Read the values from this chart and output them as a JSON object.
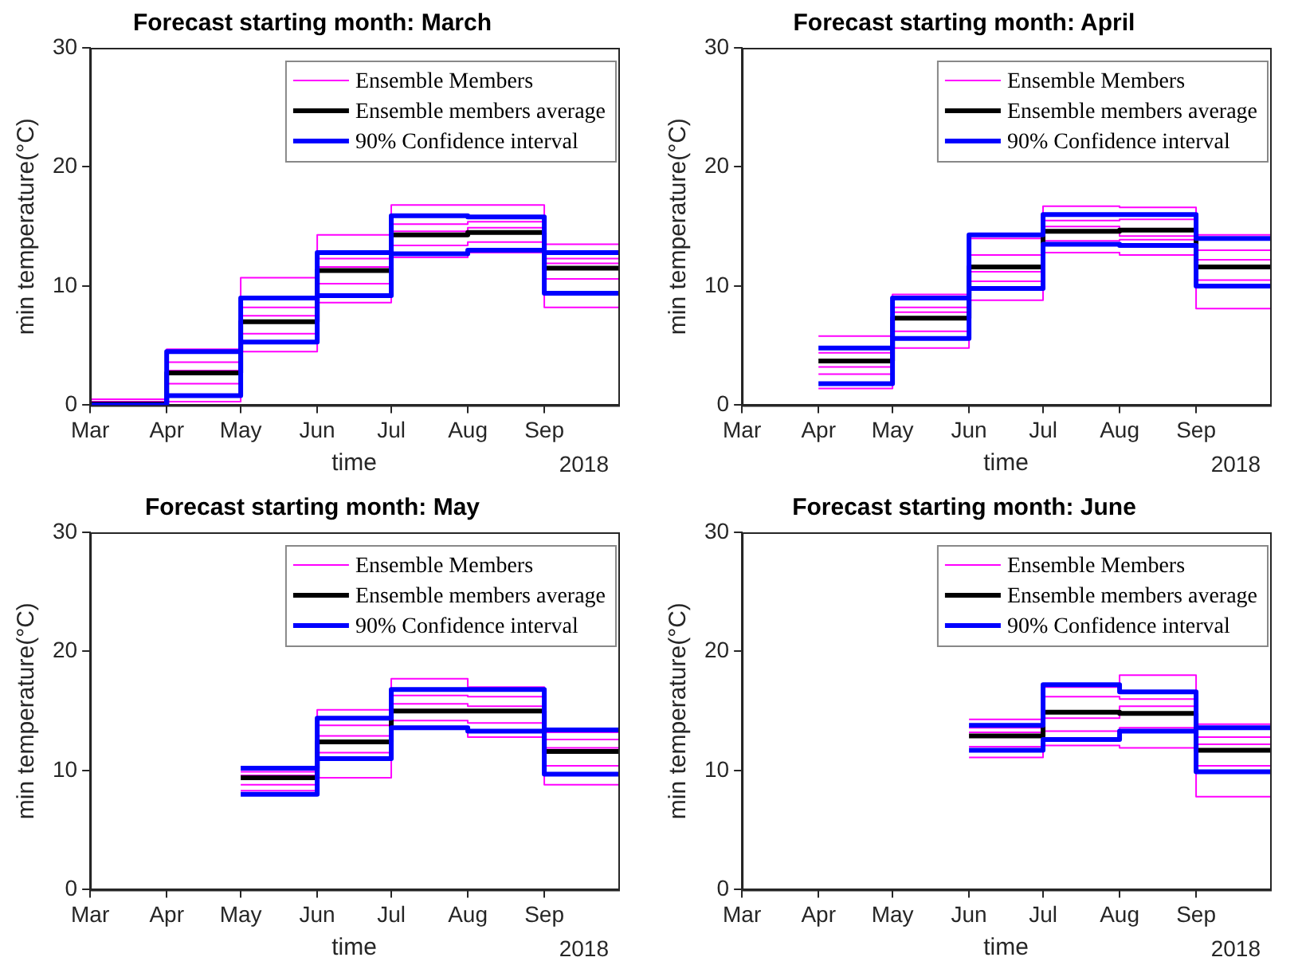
{
  "chart_data": [
    {
      "type": "step",
      "title": "Forecast starting month: March",
      "xlabel": "time",
      "ylabel": "min temperature(°C)",
      "annotations": [
        "2018"
      ],
      "legend": "top right",
      "grid": false,
      "x": [
        "2018-03-01",
        "2018-04-01",
        "2018-05-01",
        "2018-06-01",
        "2018-07-01",
        "2018-08-01",
        "2018-09-01",
        "2018-10-01"
      ],
      "xlim": [
        "2018-03-01",
        "2018-10-01"
      ],
      "xticks": [
        {
          "value": "2018-03-01",
          "label": "Mar"
        },
        {
          "value": "2018-04-01",
          "label": "Apr"
        },
        {
          "value": "2018-05-01",
          "label": "May"
        },
        {
          "value": "2018-06-01",
          "label": "Jun"
        },
        {
          "value": "2018-07-01",
          "label": "Jul"
        },
        {
          "value": "2018-08-01",
          "label": "Aug"
        },
        {
          "value": "2018-09-01",
          "label": "Sep"
        }
      ],
      "ylim": [
        0,
        30
      ],
      "yticks": [
        0,
        10,
        20,
        30
      ],
      "series": [
        {
          "name": "Ensemble Members",
          "color": "#ff00ff",
          "values": [
            0.5,
            4.7,
            10.7,
            14.3,
            16.8,
            16.8,
            13.5,
            13.5
          ]
        },
        {
          "color": "#ff00ff",
          "values": [
            0.0,
            0.3,
            4.5,
            8.6,
            12.4,
            12.8,
            8.2,
            8.2
          ]
        },
        {
          "color": "#ff00ff",
          "values": [
            0.2,
            3.6,
            8.2,
            12.3,
            15.2,
            15.4,
            12.3,
            12.3
          ]
        },
        {
          "color": "#ff00ff",
          "values": [
            0.1,
            1.8,
            6.0,
            10.2,
            13.4,
            13.7,
            10.6,
            10.6
          ]
        },
        {
          "color": "#ff00ff",
          "values": [
            0.3,
            2.9,
            7.5,
            11.6,
            14.6,
            14.9,
            11.9,
            11.9
          ]
        },
        {
          "name": "Ensemble members average",
          "color": "#000000",
          "values": [
            0.1,
            2.7,
            7.0,
            11.3,
            14.3,
            14.5,
            11.5,
            11.5
          ]
        },
        {
          "name": "90% Confidence interval",
          "color": "#0000ff",
          "values": [
            0.0,
            4.5,
            9.0,
            12.8,
            15.9,
            15.8,
            12.8,
            12.8
          ]
        },
        {
          "color": "#0000ff",
          "values": [
            0.0,
            0.8,
            5.3,
            9.2,
            12.7,
            13.0,
            9.4,
            9.4
          ]
        }
      ]
    },
    {
      "type": "step",
      "title": "Forecast starting month: April",
      "xlabel": "time",
      "ylabel": "min temperature(°C)",
      "annotations": [
        "2018"
      ],
      "legend": "top right",
      "grid": false,
      "x": [
        "2018-04-01",
        "2018-05-01",
        "2018-06-01",
        "2018-07-01",
        "2018-08-01",
        "2018-09-01",
        "2018-10-01"
      ],
      "xlim": [
        "2018-03-01",
        "2018-10-01"
      ],
      "xticks": [
        {
          "value": "2018-03-01",
          "label": "Mar"
        },
        {
          "value": "2018-04-01",
          "label": "Apr"
        },
        {
          "value": "2018-05-01",
          "label": "May"
        },
        {
          "value": "2018-06-01",
          "label": "Jun"
        },
        {
          "value": "2018-07-01",
          "label": "Jul"
        },
        {
          "value": "2018-08-01",
          "label": "Aug"
        },
        {
          "value": "2018-09-01",
          "label": "Sep"
        }
      ],
      "ylim": [
        0,
        30
      ],
      "yticks": [
        0,
        10,
        20,
        30
      ],
      "series": [
        {
          "name": "Ensemble Members",
          "color": "#ff00ff",
          "values": [
            5.8,
            9.3,
            14.0,
            16.7,
            16.6,
            14.3,
            14.3
          ]
        },
        {
          "color": "#ff00ff",
          "values": [
            1.4,
            4.8,
            8.8,
            12.8,
            12.6,
            8.1,
            8.1
          ]
        },
        {
          "color": "#ff00ff",
          "values": [
            4.4,
            8.2,
            12.6,
            15.5,
            15.6,
            13.0,
            13.0
          ]
        },
        {
          "color": "#ff00ff",
          "values": [
            2.6,
            6.2,
            10.4,
            13.8,
            13.9,
            10.5,
            10.5
          ]
        },
        {
          "color": "#ff00ff",
          "values": [
            3.2,
            7.8,
            11.2,
            15.0,
            14.2,
            12.2,
            12.2
          ]
        },
        {
          "name": "Ensemble members average",
          "color": "#000000",
          "values": [
            3.7,
            7.3,
            11.6,
            14.6,
            14.7,
            11.6,
            11.6
          ]
        },
        {
          "name": "90% Confidence interval",
          "color": "#0000ff",
          "values": [
            4.8,
            9.0,
            14.3,
            16.0,
            16.0,
            14.0,
            14.0
          ]
        },
        {
          "color": "#0000ff",
          "values": [
            1.8,
            5.6,
            9.8,
            13.5,
            13.4,
            10.0,
            10.0
          ]
        }
      ]
    },
    {
      "type": "step",
      "title": "Forecast starting month: May",
      "xlabel": "time",
      "ylabel": "min temperature(°C)",
      "annotations": [
        "2018"
      ],
      "legend": "top right",
      "grid": false,
      "x": [
        "2018-05-01",
        "2018-06-01",
        "2018-07-01",
        "2018-08-01",
        "2018-09-01",
        "2018-10-01"
      ],
      "xlim": [
        "2018-03-01",
        "2018-10-01"
      ],
      "xticks": [
        {
          "value": "2018-03-01",
          "label": "Mar"
        },
        {
          "value": "2018-04-01",
          "label": "Apr"
        },
        {
          "value": "2018-05-01",
          "label": "May"
        },
        {
          "value": "2018-06-01",
          "label": "Jun"
        },
        {
          "value": "2018-07-01",
          "label": "Jul"
        },
        {
          "value": "2018-08-01",
          "label": "Aug"
        },
        {
          "value": "2018-09-01",
          "label": "Sep"
        }
      ],
      "ylim": [
        0,
        30
      ],
      "yticks": [
        0,
        10,
        20,
        30
      ],
      "series": [
        {
          "name": "Ensemble Members",
          "color": "#ff00ff",
          "values": [
            10.3,
            15.1,
            17.7,
            17.0,
            13.2,
            13.2
          ]
        },
        {
          "color": "#ff00ff",
          "values": [
            8.3,
            9.4,
            13.5,
            12.8,
            8.8,
            8.8
          ]
        },
        {
          "color": "#ff00ff",
          "values": [
            9.9,
            13.8,
            16.3,
            16.2,
            12.6,
            12.6
          ]
        },
        {
          "color": "#ff00ff",
          "values": [
            8.8,
            11.5,
            14.2,
            14.0,
            10.4,
            10.4
          ]
        },
        {
          "color": "#ff00ff",
          "values": [
            9.6,
            12.9,
            15.6,
            15.4,
            11.9,
            11.9
          ]
        },
        {
          "name": "Ensemble members average",
          "color": "#000000",
          "values": [
            9.4,
            12.4,
            15.0,
            15.0,
            11.6,
            11.6
          ]
        },
        {
          "name": "90% Confidence interval",
          "color": "#0000ff",
          "values": [
            10.2,
            14.4,
            16.8,
            16.8,
            13.4,
            13.4
          ]
        },
        {
          "color": "#0000ff",
          "values": [
            8.0,
            11.0,
            13.6,
            13.3,
            9.7,
            9.7
          ]
        }
      ]
    },
    {
      "type": "step",
      "title": "Forecast starting month: June",
      "xlabel": "time",
      "ylabel": "min temperature(°C)",
      "annotations": [
        "2018"
      ],
      "legend": "top right",
      "grid": false,
      "x": [
        "2018-06-01",
        "2018-07-01",
        "2018-08-01",
        "2018-09-01",
        "2018-10-01"
      ],
      "xlim": [
        "2018-03-01",
        "2018-10-01"
      ],
      "xticks": [
        {
          "value": "2018-03-01",
          "label": "Mar"
        },
        {
          "value": "2018-04-01",
          "label": "Apr"
        },
        {
          "value": "2018-05-01",
          "label": "May"
        },
        {
          "value": "2018-06-01",
          "label": "Jun"
        },
        {
          "value": "2018-07-01",
          "label": "Jul"
        },
        {
          "value": "2018-08-01",
          "label": "Aug"
        },
        {
          "value": "2018-09-01",
          "label": "Sep"
        }
      ],
      "ylim": [
        0,
        30
      ],
      "yticks": [
        0,
        10,
        20,
        30
      ],
      "series": [
        {
          "name": "Ensemble Members",
          "color": "#ff00ff",
          "values": [
            14.3,
            17.0,
            18.0,
            13.9,
            13.9
          ]
        },
        {
          "color": "#ff00ff",
          "values": [
            11.1,
            12.1,
            11.9,
            7.8,
            7.8
          ]
        },
        {
          "color": "#ff00ff",
          "values": [
            13.6,
            16.2,
            16.0,
            12.8,
            12.8
          ]
        },
        {
          "color": "#ff00ff",
          "values": [
            12.0,
            13.3,
            13.6,
            10.4,
            10.4
          ]
        },
        {
          "color": "#ff00ff",
          "values": [
            13.2,
            14.4,
            15.4,
            12.2,
            12.2
          ]
        },
        {
          "name": "Ensemble members average",
          "color": "#000000",
          "values": [
            12.9,
            14.9,
            14.8,
            11.7,
            11.7
          ]
        },
        {
          "name": "90% Confidence interval",
          "color": "#0000ff",
          "values": [
            13.8,
            17.2,
            16.6,
            13.6,
            13.6
          ]
        },
        {
          "color": "#0000ff",
          "values": [
            11.7,
            12.6,
            13.3,
            9.9,
            9.9
          ]
        }
      ]
    }
  ]
}
